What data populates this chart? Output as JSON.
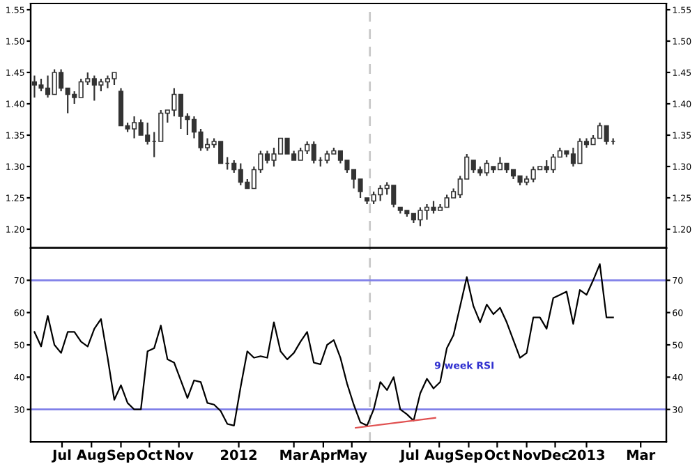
{
  "chart_data": [
    {
      "type": "candlestick",
      "x": [
        "2011-06-10",
        "2011-06-17",
        "2011-06-24",
        "2011-07-01",
        "2011-07-08",
        "2011-07-15",
        "2011-07-22",
        "2011-07-29",
        "2011-08-05",
        "2011-08-12",
        "2011-08-19",
        "2011-08-26",
        "2011-09-02",
        "2011-09-09",
        "2011-09-16",
        "2011-09-23",
        "2011-09-30",
        "2011-10-07",
        "2011-10-14",
        "2011-10-21",
        "2011-10-28",
        "2011-11-04",
        "2011-11-11",
        "2011-11-18",
        "2011-11-25",
        "2011-12-02",
        "2011-12-09",
        "2011-12-16",
        "2011-12-23",
        "2011-12-30",
        "2012-01-06",
        "2012-01-13",
        "2012-01-20",
        "2012-01-27",
        "2012-02-03",
        "2012-02-10",
        "2012-02-17",
        "2012-02-24",
        "2012-03-02",
        "2012-03-09",
        "2012-03-16",
        "2012-03-23",
        "2012-03-30",
        "2012-04-06",
        "2012-04-13",
        "2012-04-20",
        "2012-04-27",
        "2012-05-04",
        "2012-05-11",
        "2012-05-18",
        "2012-05-25",
        "2012-06-01",
        "2012-06-08",
        "2012-06-15",
        "2012-06-22",
        "2012-06-29",
        "2012-07-06",
        "2012-07-13",
        "2012-07-20",
        "2012-07-27",
        "2012-08-03",
        "2012-08-10",
        "2012-08-17",
        "2012-08-24",
        "2012-08-31",
        "2012-09-07",
        "2012-09-14",
        "2012-09-21",
        "2012-09-28",
        "2012-10-05",
        "2012-10-12",
        "2012-10-19",
        "2012-10-26",
        "2012-11-02",
        "2012-11-09",
        "2012-11-16",
        "2012-11-23",
        "2012-11-30",
        "2012-12-07",
        "2012-12-14",
        "2012-12-21",
        "2012-12-28",
        "2013-01-04",
        "2013-01-11",
        "2013-01-18",
        "2013-01-25",
        "2013-02-01",
        "2013-02-08"
      ],
      "ohlc": [
        [
          1.435,
          1.445,
          1.41,
          1.43
        ],
        [
          1.43,
          1.44,
          1.42,
          1.425
        ],
        [
          1.425,
          1.445,
          1.41,
          1.415
        ],
        [
          1.415,
          1.455,
          1.415,
          1.45
        ],
        [
          1.45,
          1.455,
          1.42,
          1.425
        ],
        [
          1.425,
          1.425,
          1.385,
          1.415
        ],
        [
          1.415,
          1.42,
          1.4,
          1.41
        ],
        [
          1.41,
          1.44,
          1.41,
          1.435
        ],
        [
          1.435,
          1.45,
          1.43,
          1.44
        ],
        [
          1.44,
          1.445,
          1.405,
          1.43
        ],
        [
          1.43,
          1.44,
          1.42,
          1.435
        ],
        [
          1.435,
          1.445,
          1.425,
          1.44
        ],
        [
          1.44,
          1.45,
          1.43,
          1.45
        ],
        [
          1.42,
          1.425,
          1.365,
          1.365
        ],
        [
          1.365,
          1.37,
          1.355,
          1.36
        ],
        [
          1.36,
          1.38,
          1.345,
          1.37
        ],
        [
          1.37,
          1.375,
          1.35,
          1.35
        ],
        [
          1.35,
          1.37,
          1.335,
          1.34
        ],
        [
          1.34,
          1.355,
          1.315,
          1.34
        ],
        [
          1.34,
          1.39,
          1.34,
          1.385
        ],
        [
          1.385,
          1.39,
          1.37,
          1.39
        ],
        [
          1.39,
          1.425,
          1.38,
          1.415
        ],
        [
          1.415,
          1.415,
          1.36,
          1.38
        ],
        [
          1.38,
          1.385,
          1.35,
          1.375
        ],
        [
          1.375,
          1.38,
          1.345,
          1.355
        ],
        [
          1.355,
          1.36,
          1.325,
          1.33
        ],
        [
          1.33,
          1.345,
          1.325,
          1.335
        ],
        [
          1.335,
          1.345,
          1.33,
          1.34
        ],
        [
          1.34,
          1.34,
          1.305,
          1.305
        ],
        [
          1.305,
          1.315,
          1.295,
          1.305
        ],
        [
          1.305,
          1.31,
          1.29,
          1.295
        ],
        [
          1.295,
          1.305,
          1.27,
          1.275
        ],
        [
          1.275,
          1.28,
          1.265,
          1.265
        ],
        [
          1.265,
          1.3,
          1.265,
          1.295
        ],
        [
          1.295,
          1.325,
          1.29,
          1.32
        ],
        [
          1.32,
          1.325,
          1.305,
          1.31
        ],
        [
          1.31,
          1.33,
          1.3,
          1.32
        ],
        [
          1.32,
          1.345,
          1.32,
          1.345
        ],
        [
          1.345,
          1.345,
          1.32,
          1.32
        ],
        [
          1.32,
          1.325,
          1.31,
          1.31
        ],
        [
          1.31,
          1.33,
          1.31,
          1.325
        ],
        [
          1.325,
          1.34,
          1.32,
          1.335
        ],
        [
          1.335,
          1.34,
          1.305,
          1.31
        ],
        [
          1.31,
          1.315,
          1.3,
          1.31
        ],
        [
          1.31,
          1.325,
          1.305,
          1.32
        ],
        [
          1.32,
          1.33,
          1.32,
          1.325
        ],
        [
          1.325,
          1.325,
          1.305,
          1.31
        ],
        [
          1.31,
          1.31,
          1.29,
          1.295
        ],
        [
          1.295,
          1.295,
          1.265,
          1.28
        ],
        [
          1.28,
          1.28,
          1.25,
          1.26
        ],
        [
          1.25,
          1.25,
          1.24,
          1.245
        ],
        [
          1.245,
          1.26,
          1.24,
          1.255
        ],
        [
          1.255,
          1.27,
          1.245,
          1.265
        ],
        [
          1.265,
          1.275,
          1.255,
          1.27
        ],
        [
          1.27,
          1.27,
          1.235,
          1.24
        ],
        [
          1.235,
          1.235,
          1.225,
          1.23
        ],
        [
          1.23,
          1.23,
          1.22,
          1.225
        ],
        [
          1.225,
          1.225,
          1.21,
          1.215
        ],
        [
          1.215,
          1.235,
          1.205,
          1.23
        ],
        [
          1.23,
          1.24,
          1.215,
          1.235
        ],
        [
          1.235,
          1.245,
          1.225,
          1.23
        ],
        [
          1.23,
          1.24,
          1.23,
          1.235
        ],
        [
          1.235,
          1.255,
          1.235,
          1.25
        ],
        [
          1.25,
          1.265,
          1.25,
          1.26
        ],
        [
          1.255,
          1.285,
          1.25,
          1.28
        ],
        [
          1.28,
          1.32,
          1.28,
          1.315
        ],
        [
          1.31,
          1.31,
          1.29,
          1.295
        ],
        [
          1.295,
          1.3,
          1.285,
          1.29
        ],
        [
          1.29,
          1.31,
          1.285,
          1.305
        ],
        [
          1.3,
          1.3,
          1.29,
          1.295
        ],
        [
          1.295,
          1.315,
          1.295,
          1.305
        ],
        [
          1.305,
          1.305,
          1.29,
          1.295
        ],
        [
          1.295,
          1.295,
          1.28,
          1.285
        ],
        [
          1.285,
          1.285,
          1.27,
          1.275
        ],
        [
          1.275,
          1.285,
          1.27,
          1.28
        ],
        [
          1.28,
          1.3,
          1.275,
          1.295
        ],
        [
          1.295,
          1.3,
          1.295,
          1.3
        ],
        [
          1.3,
          1.31,
          1.29,
          1.295
        ],
        [
          1.295,
          1.32,
          1.29,
          1.315
        ],
        [
          1.315,
          1.33,
          1.315,
          1.325
        ],
        [
          1.325,
          1.325,
          1.315,
          1.32
        ],
        [
          1.32,
          1.33,
          1.3,
          1.305
        ],
        [
          1.305,
          1.345,
          1.305,
          1.34
        ],
        [
          1.34,
          1.345,
          1.33,
          1.335
        ],
        [
          1.335,
          1.35,
          1.335,
          1.345
        ],
        [
          1.345,
          1.37,
          1.345,
          1.365
        ],
        [
          1.365,
          1.365,
          1.335,
          1.34
        ],
        [
          1.34,
          1.345,
          1.335,
          1.34
        ]
      ],
      "xlim": [
        "2011-06-06",
        "2013-04-05"
      ],
      "ylim": [
        1.17,
        1.56
      ],
      "yticks": [
        {
          "value": 1.2,
          "label": "1.20"
        },
        1.25,
        {
          "value": 1.3,
          "label": "1.30"
        },
        1.35,
        {
          "value": 1.4,
          "label": "1.40"
        },
        1.45,
        {
          "value": 1.5,
          "label": "1.50"
        },
        1.55
      ],
      "y2lim": [
        1.17,
        1.56
      ],
      "y2ticks": [
        {
          "value": 1.2,
          "label": "1.20"
        },
        1.25,
        {
          "value": 1.3,
          "label": "1.30"
        },
        1.35,
        {
          "value": 1.4,
          "label": "1.40"
        },
        1.45,
        {
          "value": 1.5,
          "label": "1.50"
        },
        1.55
      ],
      "tick_labels": "y",
      "ref_lines": [
        {
          "axis": "x",
          "value": "2012-05-28",
          "color": "#c8c8c8",
          "line_style": "dashed"
        }
      ]
    },
    {
      "type": "line",
      "x": [
        "2011-06-10",
        "2011-06-17",
        "2011-06-24",
        "2011-07-01",
        "2011-07-08",
        "2011-07-15",
        "2011-07-22",
        "2011-07-29",
        "2011-08-05",
        "2011-08-12",
        "2011-08-19",
        "2011-08-26",
        "2011-09-02",
        "2011-09-09",
        "2011-09-16",
        "2011-09-23",
        "2011-09-30",
        "2011-10-07",
        "2011-10-14",
        "2011-10-21",
        "2011-10-28",
        "2011-11-04",
        "2011-11-11",
        "2011-11-18",
        "2011-11-25",
        "2011-12-02",
        "2011-12-09",
        "2011-12-16",
        "2011-12-23",
        "2011-12-30",
        "2012-01-06",
        "2012-01-13",
        "2012-01-20",
        "2012-01-27",
        "2012-02-03",
        "2012-02-10",
        "2012-02-17",
        "2012-02-24",
        "2012-03-02",
        "2012-03-09",
        "2012-03-16",
        "2012-03-23",
        "2012-03-30",
        "2012-04-06",
        "2012-04-13",
        "2012-04-20",
        "2012-04-27",
        "2012-05-04",
        "2012-05-11",
        "2012-05-18",
        "2012-05-25",
        "2012-06-01",
        "2012-06-08",
        "2012-06-15",
        "2012-06-22",
        "2012-06-29",
        "2012-07-06",
        "2012-07-13",
        "2012-07-20",
        "2012-07-27",
        "2012-08-03",
        "2012-08-10",
        "2012-08-17",
        "2012-08-24",
        "2012-08-31",
        "2012-09-07",
        "2012-09-14",
        "2012-09-21",
        "2012-09-28",
        "2012-10-05",
        "2012-10-12",
        "2012-10-19",
        "2012-10-26",
        "2012-11-02",
        "2012-11-09",
        "2012-11-16",
        "2012-11-23",
        "2012-11-30",
        "2012-12-07",
        "2012-12-14",
        "2012-12-21",
        "2012-12-28",
        "2013-01-04",
        "2013-01-11",
        "2013-01-18",
        "2013-01-25",
        "2013-02-01",
        "2013-02-08"
      ],
      "series": [
        {
          "color": "#000000",
          "values": [
            54,
            49.5,
            59,
            50,
            47.5,
            54,
            54,
            51,
            49.5,
            55,
            58,
            46,
            33,
            37.5,
            32,
            30,
            30,
            48,
            49,
            56,
            45.5,
            44.5,
            39,
            33.5,
            39,
            38.5,
            32,
            31.5,
            29.5,
            25.5,
            25,
            37,
            48,
            46,
            46.5,
            46,
            57,
            48,
            45.5,
            47.5,
            51,
            54,
            44.5,
            44,
            50,
            51.5,
            46,
            38,
            31.5,
            26,
            25,
            30,
            38.5,
            36,
            40,
            30,
            28.5,
            26.5,
            35,
            39.5,
            36.5,
            38.5,
            49,
            53,
            62,
            71,
            62,
            57,
            62.5,
            59.5,
            61.5,
            57,
            51.5,
            46,
            47.5,
            58.5,
            58.5,
            55,
            64.5,
            65.5,
            66.5,
            56.5,
            67,
            65.5,
            70,
            75,
            58.5,
            58.5
          ]
        },
        {
          "type": "line",
          "color": "#e05050",
          "x": [
            "2012-05-13",
            "2012-08-05"
          ],
          "values": [
            24.3,
            27.4
          ]
        }
      ],
      "xlim": [
        "2011-06-06",
        "2013-04-05"
      ],
      "xticks": [
        {
          "value": "2011-07-09",
          "label": "Jul"
        },
        {
          "value": "2011-08-09",
          "label": "Aug"
        },
        {
          "value": "2011-09-09",
          "label": "Sep"
        },
        {
          "value": "2011-10-09",
          "label": "Oct"
        },
        {
          "value": "2011-11-09",
          "label": "Nov"
        },
        {
          "value": "2012-01-11",
          "label": "2012"
        },
        {
          "value": "2012-03-09",
          "label": "Mar"
        },
        {
          "value": "2012-04-09",
          "label": "Apr"
        },
        {
          "value": "2012-05-09",
          "label": "May"
        },
        {
          "value": "2012-07-09",
          "label": "Jul"
        },
        {
          "value": "2012-08-09",
          "label": "Aug"
        },
        {
          "value": "2012-09-09",
          "label": "Sep"
        },
        {
          "value": "2012-10-09",
          "label": "Oct"
        },
        {
          "value": "2012-11-09",
          "label": "Nov"
        },
        {
          "value": "2012-12-09",
          "label": "Dec"
        },
        {
          "value": "2013-01-11",
          "label": "2013"
        },
        {
          "value": "2013-03-09",
          "label": "Mar"
        }
      ],
      "ylim": [
        20,
        80
      ],
      "yticks": [
        30,
        40,
        50,
        60,
        70
      ],
      "y2lim": [
        20,
        80
      ],
      "y2ticks": [
        30,
        40,
        50,
        60,
        70
      ],
      "ref_lines": [
        {
          "axis": "x",
          "value": "2012-05-28",
          "color": "#c8c8c8",
          "line_style": "dashed"
        },
        {
          "axis": "y",
          "value": 70,
          "color": "#8080e8"
        },
        {
          "axis": "y",
          "value": 30,
          "color": "#8080e8"
        }
      ],
      "annotations": [
        "9 week RSI"
      ]
    }
  ]
}
